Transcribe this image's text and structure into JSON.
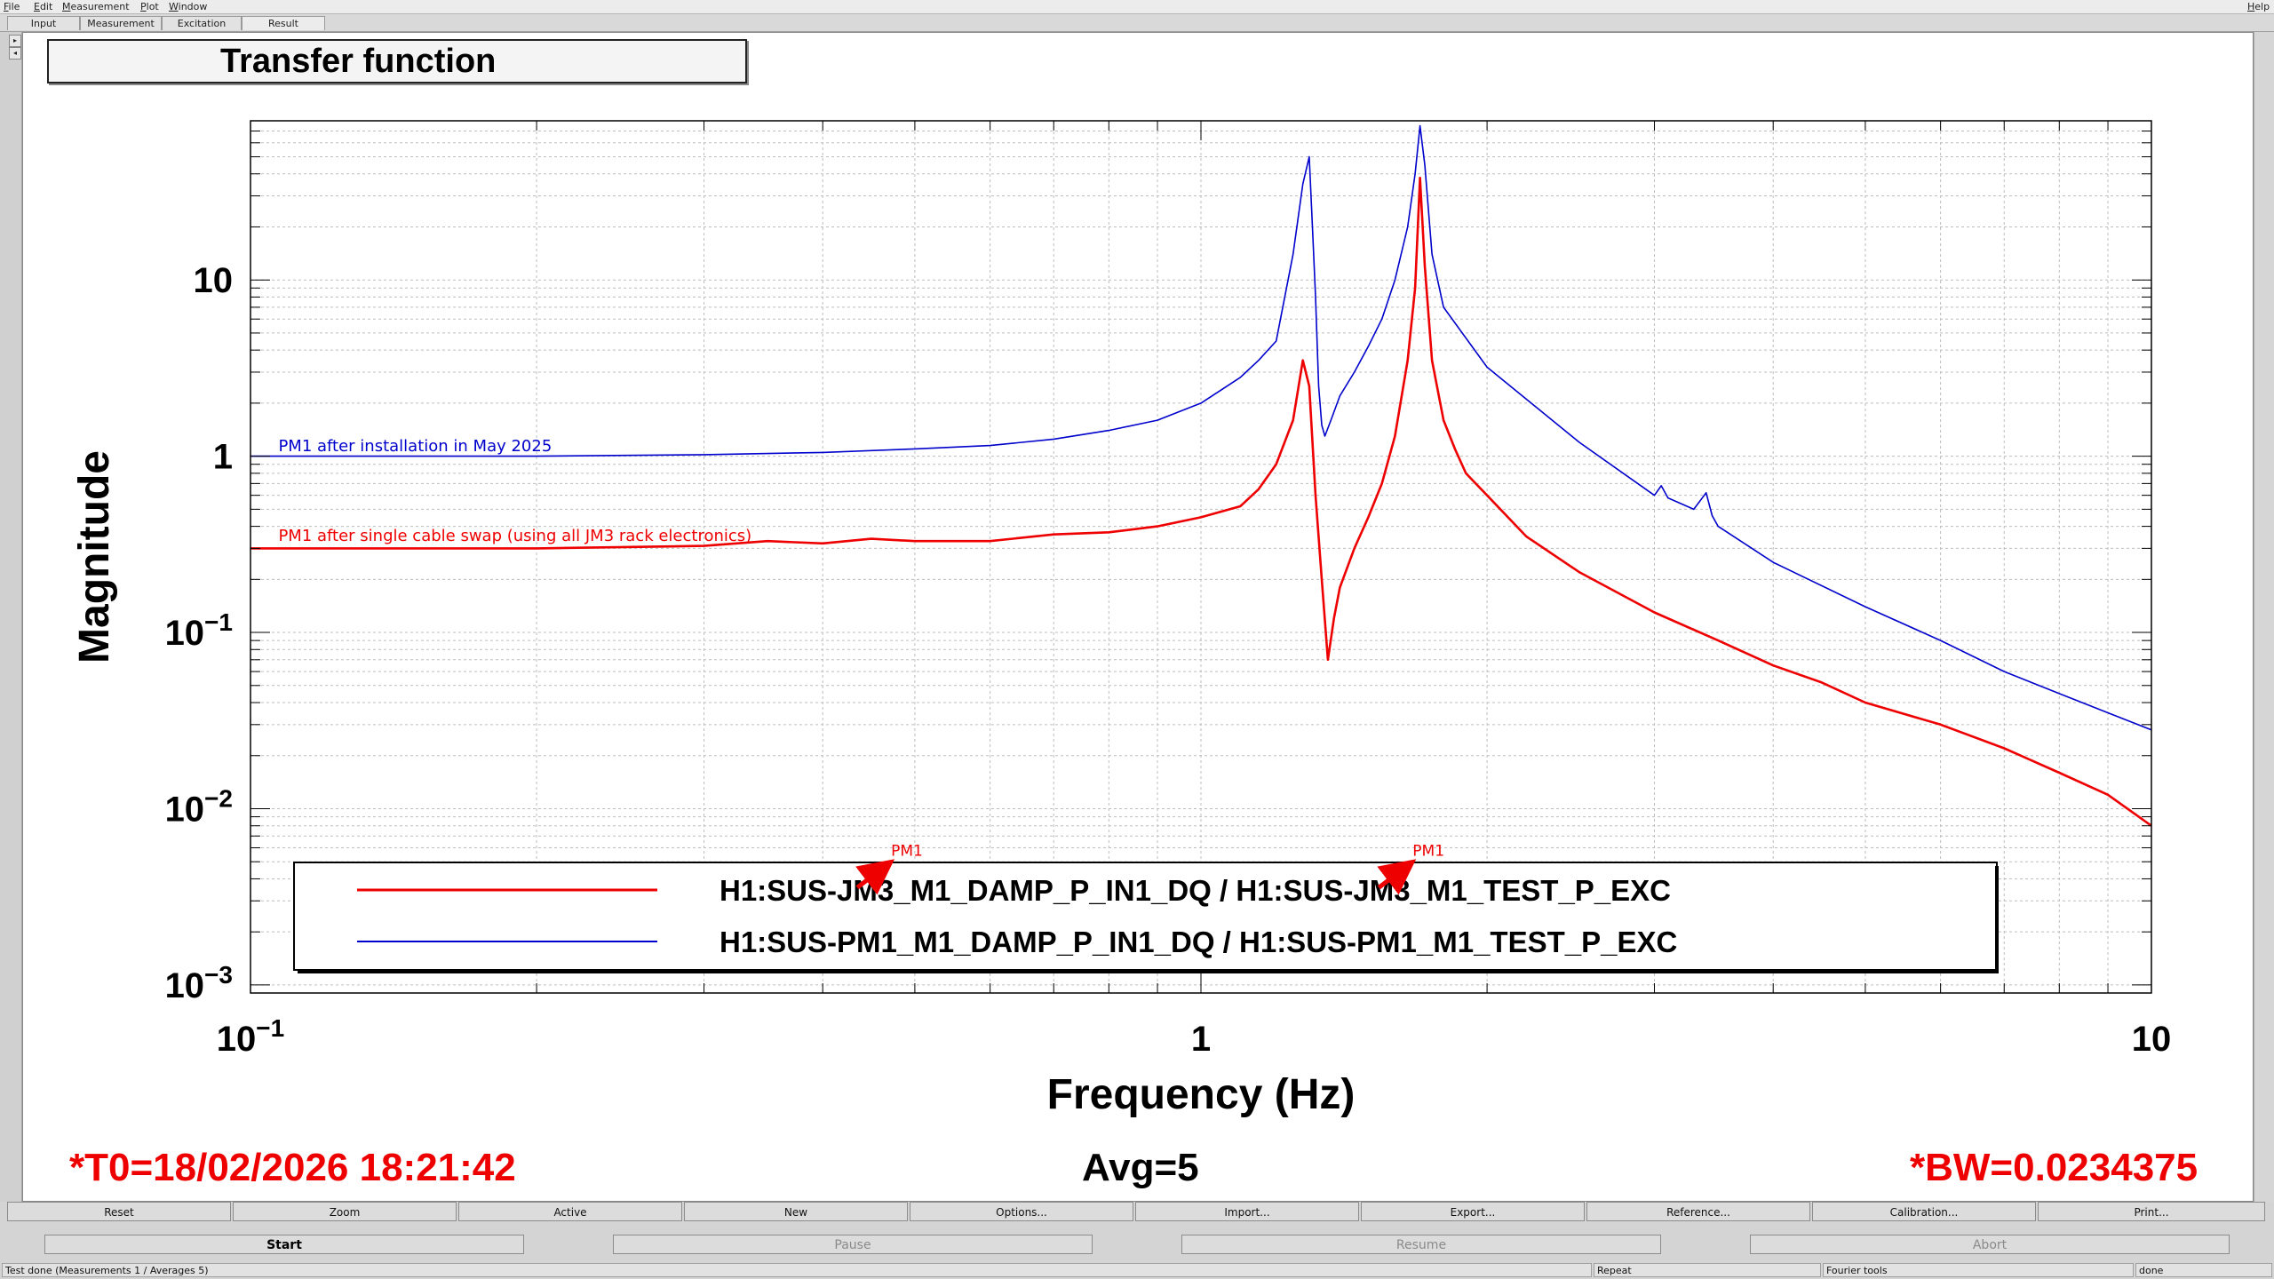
{
  "menubar": {
    "items": [
      "File",
      "Edit",
      "Measurement",
      "Plot",
      "Window"
    ],
    "help": "Help"
  },
  "tabs": [
    "Input",
    "Measurement",
    "Excitation",
    "Result"
  ],
  "window": {
    "title": "Transfer function"
  },
  "chart_data": {
    "type": "line",
    "title": "Transfer function",
    "xlabel": "Frequency (Hz)",
    "ylabel": "Magnitude",
    "xscale": "log",
    "yscale": "log",
    "xlim": [
      0.1,
      10
    ],
    "ylim": [
      0.0009,
      80
    ],
    "grid": true,
    "x_ticks": [
      "10^-1",
      "1",
      "10"
    ],
    "y_ticks": [
      "10^-3",
      "10^-2",
      "10^-1",
      "1",
      "10"
    ],
    "legend": {
      "placement": "bottom-center",
      "entries": [
        {
          "label": "H1:SUS-JM3_M1_DAMP_P_IN1_DQ / H1:SUS-JM3_M1_TEST_P_EXC",
          "color": "#ee0000"
        },
        {
          "label": "H1:SUS-PM1_M1_DAMP_P_IN1_DQ / H1:SUS-PM1_M1_TEST_P_EXC",
          "color": "#0000cc"
        }
      ]
    },
    "series": [
      {
        "name": "H1:SUS-JM3_M1_DAMP_P_IN1_DQ / H1:SUS-JM3_M1_TEST_P_EXC",
        "color": "#ee0000",
        "x": [
          0.1,
          0.15,
          0.2,
          0.3,
          0.35,
          0.4,
          0.45,
          0.5,
          0.6,
          0.7,
          0.8,
          0.9,
          1.0,
          1.1,
          1.15,
          1.2,
          1.25,
          1.28,
          1.3,
          1.32,
          1.34,
          1.36,
          1.38,
          1.4,
          1.45,
          1.5,
          1.55,
          1.6,
          1.65,
          1.68,
          1.7,
          1.72,
          1.75,
          1.8,
          1.85,
          1.9,
          2.0,
          2.2,
          2.5,
          3.0,
          3.5,
          4.0,
          4.5,
          5.0,
          6.0,
          7.0,
          8.0,
          9.0,
          10.0
        ],
        "y": [
          0.3,
          0.3,
          0.3,
          0.31,
          0.33,
          0.32,
          0.34,
          0.33,
          0.33,
          0.36,
          0.37,
          0.4,
          0.45,
          0.52,
          0.65,
          0.9,
          1.6,
          3.5,
          2.5,
          0.6,
          0.2,
          0.07,
          0.12,
          0.18,
          0.3,
          0.45,
          0.7,
          1.3,
          3.5,
          9.0,
          38.0,
          12.0,
          3.5,
          1.6,
          1.1,
          0.8,
          0.6,
          0.35,
          0.22,
          0.13,
          0.09,
          0.065,
          0.052,
          0.04,
          0.03,
          0.022,
          0.016,
          0.012,
          0.008
        ]
      },
      {
        "name": "H1:SUS-PM1_M1_DAMP_P_IN1_DQ / H1:SUS-PM1_M1_TEST_P_EXC",
        "color": "#0000cc",
        "x": [
          0.1,
          0.2,
          0.3,
          0.4,
          0.5,
          0.6,
          0.7,
          0.8,
          0.9,
          1.0,
          1.1,
          1.15,
          1.2,
          1.25,
          1.28,
          1.3,
          1.31,
          1.32,
          1.33,
          1.34,
          1.35,
          1.37,
          1.4,
          1.45,
          1.5,
          1.55,
          1.6,
          1.65,
          1.68,
          1.7,
          1.72,
          1.75,
          1.8,
          2.0,
          2.5,
          3.0,
          3.05,
          3.1,
          3.3,
          3.4,
          3.45,
          3.5,
          4.0,
          5.0,
          6.0,
          7.0,
          8.0,
          9.0,
          10.0
        ],
        "y": [
          1.0,
          1.0,
          1.02,
          1.05,
          1.1,
          1.15,
          1.25,
          1.4,
          1.6,
          2.0,
          2.8,
          3.5,
          4.5,
          14.0,
          35.0,
          50.0,
          20.0,
          8.0,
          2.5,
          1.5,
          1.3,
          1.6,
          2.2,
          3.0,
          4.2,
          6.0,
          10.0,
          20.0,
          40.0,
          75.0,
          45.0,
          14.0,
          7.0,
          3.2,
          1.2,
          0.6,
          0.68,
          0.58,
          0.5,
          0.62,
          0.46,
          0.4,
          0.25,
          0.14,
          0.09,
          0.06,
          0.045,
          0.035,
          0.028
        ]
      }
    ],
    "annotations": [
      {
        "text": "PM1 after installation in May 2025",
        "color": "#0000cc",
        "x": 0.107,
        "y": 1.07
      },
      {
        "text": "PM1 after single cable swap (using all JM3 rack electronics)",
        "color": "#ee0000",
        "x": 0.107,
        "y": 0.33
      },
      {
        "text": "PM1",
        "color": "#ee0000",
        "arrow": true,
        "x": 0.472,
        "y": 0.0075
      },
      {
        "text": "PM1",
        "color": "#ee0000",
        "arrow": true,
        "x": 1.67,
        "y": 0.0075
      }
    ]
  },
  "info": {
    "t0": "*T0=18/02/2026 18:21:42",
    "avg": "Avg=5",
    "bw": "*BW=0.0234375"
  },
  "buttons_row1": [
    "Reset",
    "Zoom",
    "Active",
    "New",
    "Options...",
    "Import...",
    "Export...",
    "Reference...",
    "Calibration...",
    "Print..."
  ],
  "buttons_row2": [
    {
      "label": "Start",
      "enabled": true
    },
    {
      "label": "Pause",
      "enabled": false
    },
    {
      "label": "Resume",
      "enabled": false
    },
    {
      "label": "Abort",
      "enabled": false
    }
  ],
  "status": {
    "message": "Test done (Measurements 1 / Averages 5)",
    "repeat": "Repeat",
    "tools": "Fourier tools",
    "state": "done"
  }
}
